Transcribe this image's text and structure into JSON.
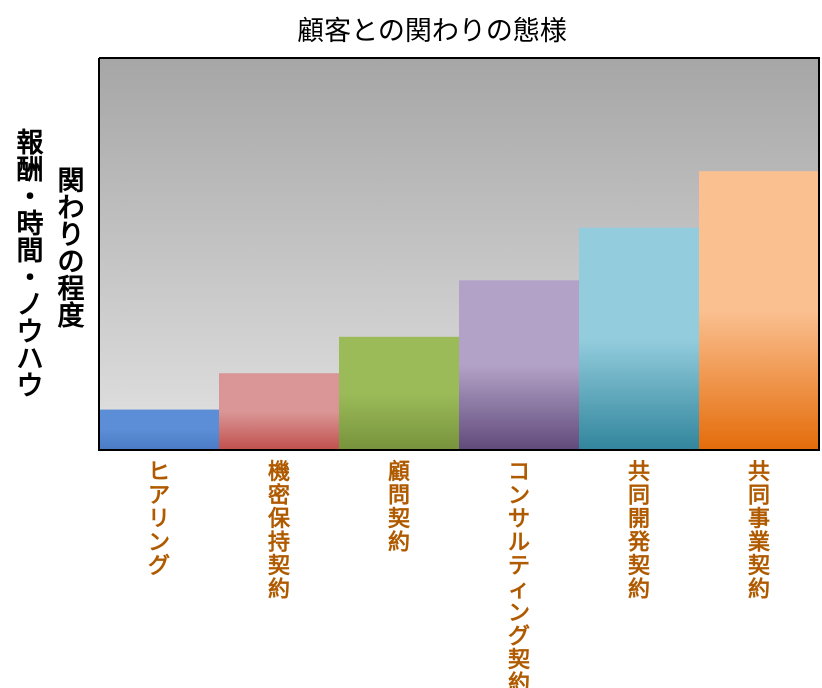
{
  "chart_data": {
    "type": "bar",
    "title": "顧客との関わりの態様",
    "ylabel_outer": "報酬・時間・ノウハウ",
    "ylabel_inner": "関わりの程度",
    "categories": [
      "ヒアリング",
      "機密保持契約",
      "顧問契約",
      "コンサルティング契約",
      "共同開発契約",
      "共同事業契約"
    ],
    "values": [
      1.0,
      1.9,
      2.8,
      4.2,
      5.5,
      6.9
    ],
    "ylim": [
      0,
      9.7
    ],
    "grid": false,
    "legend": "none",
    "colors": [
      "#5B8ED6",
      "#DA9696",
      "#9BBB59",
      "#B3A2C7",
      "#93CDDD",
      "#FAC090"
    ],
    "bottom_colors": [
      "#4A7BC4",
      "#C0504D",
      "#77933C",
      "#604A7B",
      "#31859C",
      "#E46C0A"
    ],
    "category_label_color": "#B05A00",
    "plot_background_top": "#A6A6A6",
    "plot_background_bottom": "#E2E2E2"
  }
}
